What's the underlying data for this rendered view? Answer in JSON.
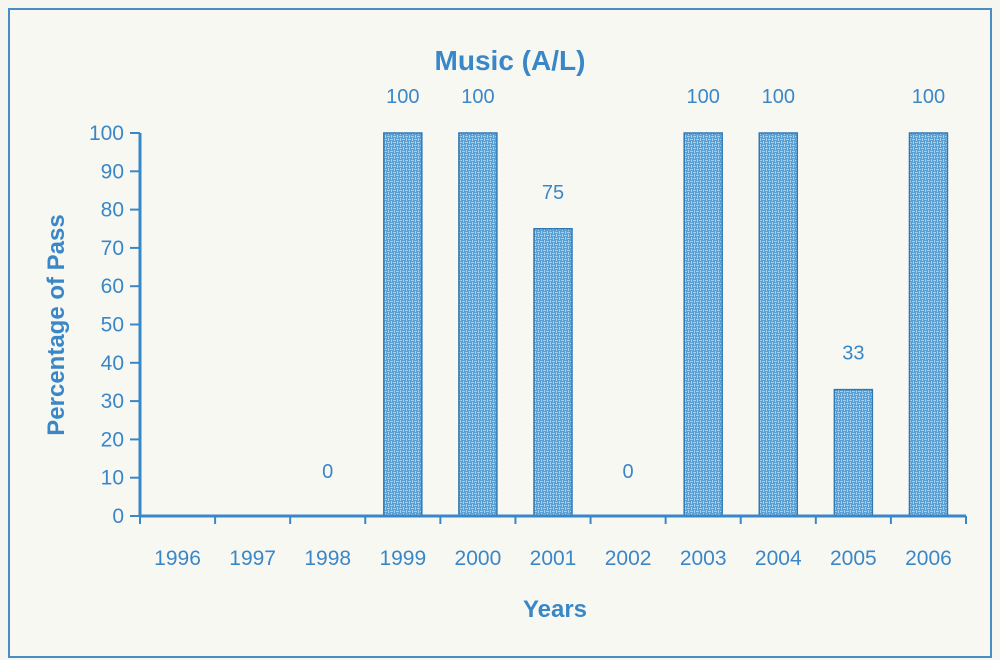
{
  "chart_data": {
    "type": "bar",
    "title": "Music (A/L)",
    "xlabel": "Years",
    "ylabel": "Percentage of Pass",
    "categories": [
      "1996",
      "1997",
      "1998",
      "1999",
      "2000",
      "2001",
      "2002",
      "2003",
      "2004",
      "2005",
      "2006"
    ],
    "values": [
      null,
      null,
      0,
      100,
      100,
      75,
      0,
      100,
      100,
      33,
      100
    ],
    "data_labels": [
      "",
      "",
      "0",
      "100",
      "100",
      "75",
      "0",
      "100",
      "100",
      "33",
      "100"
    ],
    "ylim": [
      0,
      100
    ],
    "yticks": [
      0,
      10,
      20,
      30,
      40,
      50,
      60,
      70,
      80,
      90,
      100
    ],
    "grid": false,
    "colors": {
      "text": "#3a87c8",
      "axis": "#3a87c8",
      "bar_fill": "#4d9ad2",
      "bar_pattern": "#a8d0ec",
      "bar_stroke": "#2f78b4"
    }
  }
}
